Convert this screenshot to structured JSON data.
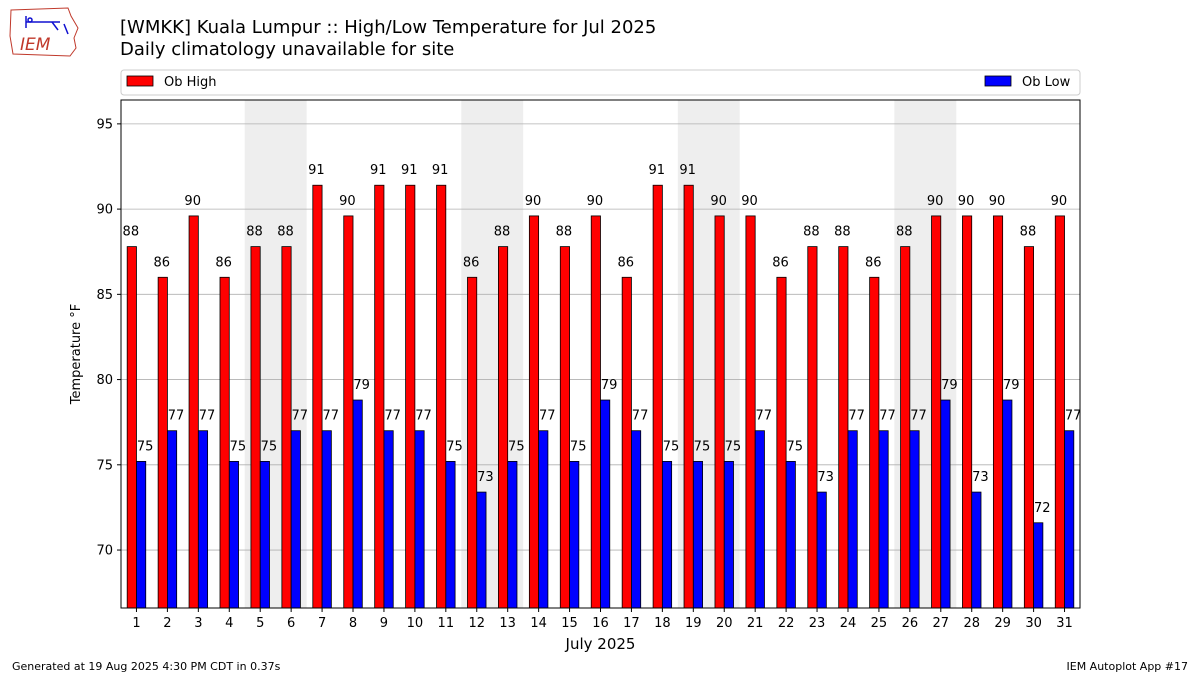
{
  "header": {
    "title_line1": "[WMKK] Kuala Lumpur :: High/Low Temperature for Jul 2025",
    "title_line2": "Daily climatology unavailable for site",
    "logo_text": "IEM"
  },
  "footer": {
    "left": "Generated at 19 Aug 2025 4:30 PM CDT in 0.37s",
    "right": "IEM Autoplot App #17"
  },
  "colors": {
    "high": "#ff0000",
    "low": "#0000ff",
    "weekend_band": "#eeeeee",
    "grid": "#b0b0b0"
  },
  "chart_data": {
    "type": "bar",
    "title": "[WMKK] Kuala Lumpur :: High/Low Temperature for Jul 2025",
    "subtitle": "Daily climatology unavailable for site",
    "xlabel": "July 2025",
    "ylabel": "Temperature °F",
    "ylim": [
      66.6,
      96.4
    ],
    "yticks": [
      70,
      75,
      80,
      85,
      90,
      95
    ],
    "grid": "horizontal",
    "legend_placement": "top, spanning",
    "categories": [
      "1",
      "2",
      "3",
      "4",
      "5",
      "6",
      "7",
      "8",
      "9",
      "10",
      "11",
      "12",
      "13",
      "14",
      "15",
      "16",
      "17",
      "18",
      "19",
      "20",
      "21",
      "22",
      "23",
      "24",
      "25",
      "26",
      "27",
      "28",
      "29",
      "30",
      "31"
    ],
    "shaded_days": [
      [
        5,
        6
      ],
      [
        12,
        13
      ],
      [
        19,
        20
      ],
      [
        26,
        27
      ]
    ],
    "series": [
      {
        "name": "Ob High",
        "color": "#ff0000",
        "values": [
          88,
          86,
          90,
          86,
          88,
          88,
          91,
          90,
          91,
          91,
          91,
          86,
          88,
          90,
          88,
          90,
          86,
          91,
          91,
          90,
          90,
          86,
          88,
          88,
          86,
          88,
          90,
          90,
          90,
          88,
          90
        ]
      },
      {
        "name": "Ob Low",
        "color": "#0000ff",
        "values": [
          75,
          77,
          77,
          75,
          75,
          77,
          77,
          79,
          77,
          77,
          75,
          73,
          75,
          77,
          75,
          79,
          77,
          75,
          75,
          75,
          77,
          75,
          73,
          77,
          77,
          77,
          79,
          73,
          79,
          72,
          77
        ]
      }
    ],
    "bar_heights_true_values": {
      "Ob High": [
        87.8,
        86.0,
        89.6,
        86.0,
        87.8,
        87.8,
        91.4,
        89.6,
        91.4,
        91.4,
        91.4,
        86.0,
        87.8,
        89.6,
        87.8,
        89.6,
        86.0,
        91.4,
        91.4,
        89.6,
        89.6,
        86.0,
        87.8,
        87.8,
        86.0,
        87.8,
        89.6,
        89.6,
        89.6,
        87.8,
        89.6
      ],
      "Ob Low": [
        75.2,
        77.0,
        77.0,
        75.2,
        75.2,
        77.0,
        77.0,
        78.8,
        77.0,
        77.0,
        75.2,
        73.4,
        75.2,
        77.0,
        75.2,
        78.8,
        77.0,
        75.2,
        75.2,
        75.2,
        77.0,
        75.2,
        73.4,
        77.0,
        77.0,
        77.0,
        78.8,
        73.4,
        78.8,
        71.6,
        77.0
      ]
    }
  }
}
